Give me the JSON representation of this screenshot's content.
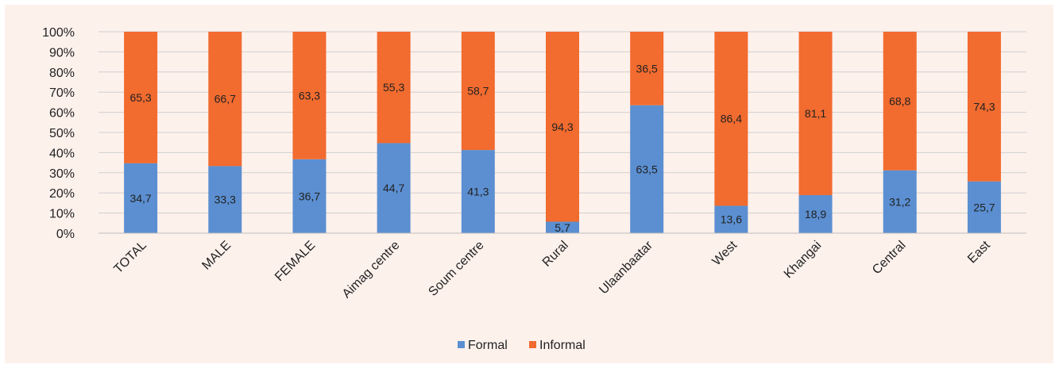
{
  "chart_data": {
    "type": "bar",
    "stacked": true,
    "percent": true,
    "categories": [
      "TOTAL",
      "MALE",
      "FEMALE",
      "Aimag centre",
      "Soum centre",
      "Rural",
      "Ulaanbaatar",
      "West",
      "Khangai",
      "Central",
      "East"
    ],
    "series": [
      {
        "name": "Formal",
        "color": "#5b8fd1",
        "values": [
          34.7,
          33.3,
          36.7,
          44.7,
          41.3,
          5.7,
          63.5,
          13.6,
          18.9,
          31.2,
          25.7
        ],
        "labels": [
          "34,7",
          "33,3",
          "36,7",
          "44,7",
          "41,3",
          "5,7",
          "63,5",
          "13,6",
          "18,9",
          "31,2",
          "25,7"
        ]
      },
      {
        "name": "Informal",
        "color": "#f26b2f",
        "values": [
          65.3,
          66.7,
          63.3,
          55.3,
          58.7,
          94.3,
          36.5,
          86.4,
          81.1,
          68.8,
          74.3
        ],
        "labels": [
          "65,3",
          "66,7",
          "63,3",
          "55,3",
          "58,7",
          "94,3",
          "36,5",
          "86,4",
          "81,1",
          "68,8",
          "74,3"
        ]
      }
    ],
    "y_ticks": [
      "0%",
      "10%",
      "20%",
      "30%",
      "40%",
      "50%",
      "60%",
      "70%",
      "80%",
      "90%",
      "100%"
    ],
    "ylim": [
      0,
      100
    ],
    "grid": true,
    "legend_position": "bottom"
  }
}
